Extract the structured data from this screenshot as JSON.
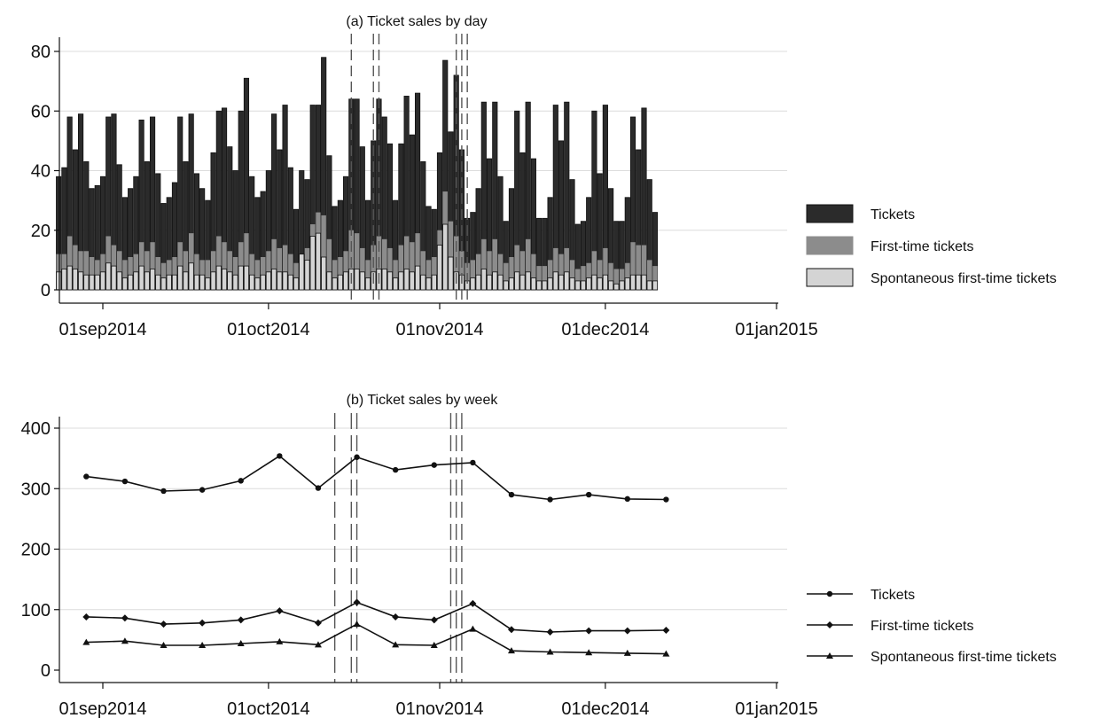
{
  "chart_data": [
    {
      "type": "bar",
      "title": "(a) Ticket sales by day",
      "xlabel": "",
      "ylabel": "",
      "ylim": [
        0,
        85
      ],
      "yticks": [
        0,
        20,
        40,
        60,
        80
      ],
      "x_range": [
        "2014-08-24",
        "2015-01-01"
      ],
      "xticks": [
        "01sep2014",
        "01oct2014",
        "01nov2014",
        "01dec2014",
        "01jan2015"
      ],
      "grid": true,
      "legend_position": "right",
      "x_start": "2014-08-24",
      "vlines": [
        "2014-10-16",
        "2014-10-20",
        "2014-10-21",
        "2014-11-04",
        "2014-11-05",
        "2014-11-06"
      ],
      "series": [
        {
          "name": "Tickets",
          "color": "#2b2b2b",
          "values": [
            38,
            41,
            58,
            47,
            59,
            43,
            34,
            35,
            38,
            58,
            59,
            42,
            31,
            34,
            38,
            57,
            43,
            58,
            39,
            29,
            31,
            36,
            58,
            43,
            59,
            39,
            34,
            30,
            46,
            60,
            61,
            48,
            40,
            60,
            71,
            38,
            31,
            33,
            40,
            59,
            47,
            62,
            41,
            27,
            40,
            37,
            62,
            62,
            78,
            45,
            28,
            30,
            38,
            64,
            64,
            48,
            30,
            50,
            64,
            58,
            49,
            30,
            49,
            65,
            52,
            66,
            43,
            28,
            27,
            46,
            77,
            53,
            72,
            47,
            24,
            26,
            34,
            63,
            44,
            63,
            38,
            23,
            34,
            60,
            46,
            63,
            44,
            24,
            24,
            31,
            62,
            50,
            63,
            37,
            22,
            23,
            31,
            60,
            39,
            62,
            34,
            23,
            23,
            31,
            58,
            47,
            61,
            37,
            26
          ]
        },
        {
          "name": "First-time tickets",
          "color": "#8c8c8c",
          "values": [
            12,
            12,
            18,
            15,
            13,
            13,
            11,
            10,
            12,
            18,
            15,
            13,
            10,
            11,
            12,
            16,
            13,
            16,
            11,
            9,
            10,
            11,
            16,
            13,
            19,
            12,
            10,
            10,
            13,
            18,
            16,
            13,
            11,
            16,
            19,
            12,
            10,
            11,
            13,
            17,
            14,
            15,
            12,
            9,
            12,
            14,
            22,
            26,
            25,
            17,
            10,
            11,
            13,
            20,
            19,
            14,
            10,
            15,
            18,
            17,
            14,
            10,
            15,
            18,
            16,
            19,
            13,
            10,
            11,
            20,
            33,
            23,
            18,
            13,
            9,
            10,
            12,
            17,
            13,
            17,
            12,
            9,
            11,
            15,
            13,
            17,
            12,
            8,
            8,
            10,
            14,
            12,
            14,
            10,
            7,
            8,
            9,
            13,
            10,
            14,
            9,
            7,
            7,
            9,
            16,
            15,
            15,
            10,
            8
          ]
        },
        {
          "name": "Spontaneous first-time tickets",
          "color": "#d4d4d4",
          "values": [
            6,
            7,
            8,
            7,
            6,
            5,
            5,
            5,
            6,
            9,
            8,
            6,
            4,
            5,
            6,
            8,
            6,
            7,
            5,
            4,
            5,
            5,
            8,
            6,
            9,
            5,
            5,
            4,
            6,
            8,
            7,
            6,
            5,
            8,
            8,
            5,
            4,
            5,
            6,
            7,
            6,
            6,
            5,
            4,
            12,
            10,
            18,
            19,
            11,
            6,
            4,
            5,
            6,
            7,
            7,
            6,
            4,
            6,
            7,
            7,
            6,
            4,
            6,
            7,
            6,
            8,
            5,
            4,
            5,
            15,
            22,
            11,
            6,
            5,
            3,
            4,
            5,
            7,
            5,
            6,
            5,
            3,
            4,
            6,
            5,
            6,
            4,
            3,
            3,
            4,
            6,
            5,
            6,
            4,
            3,
            3,
            4,
            5,
            4,
            5,
            3,
            2,
            3,
            4,
            5,
            5,
            5,
            3,
            3
          ]
        }
      ]
    },
    {
      "type": "line",
      "title": "(b) Ticket sales by week",
      "xlabel": "",
      "ylabel": "",
      "ylim": [
        -10,
        420
      ],
      "yticks": [
        0,
        100,
        200,
        300,
        400
      ],
      "x_range": [
        "2014-08-24",
        "2015-01-01"
      ],
      "xticks": [
        "01sep2014",
        "01oct2014",
        "01nov2014",
        "01dec2014",
        "01jan2015"
      ],
      "grid": true,
      "legend_position": "right",
      "x": [
        "2014-08-29",
        "2014-09-05",
        "2014-09-12",
        "2014-09-19",
        "2014-09-26",
        "2014-10-03",
        "2014-10-10",
        "2014-10-17",
        "2014-10-24",
        "2014-10-31",
        "2014-11-07",
        "2014-11-14",
        "2014-11-21",
        "2014-11-28",
        "2014-12-05",
        "2014-12-12"
      ],
      "vlines": [
        "2014-10-13",
        "2014-10-16",
        "2014-10-17",
        "2014-11-03",
        "2014-11-04",
        "2014-11-05"
      ],
      "series": [
        {
          "name": "Tickets",
          "marker": "circle",
          "values": [
            320,
            312,
            296,
            298,
            313,
            354,
            301,
            352,
            331,
            339,
            343,
            290,
            282,
            290,
            283,
            282
          ]
        },
        {
          "name": "First-time tickets",
          "marker": "diamond",
          "values": [
            88,
            86,
            76,
            78,
            83,
            98,
            78,
            112,
            88,
            83,
            110,
            67,
            63,
            65,
            65,
            66
          ]
        },
        {
          "name": "Spontaneous first-time tickets",
          "marker": "triangle",
          "values": [
            46,
            48,
            41,
            41,
            44,
            47,
            42,
            76,
            42,
            41,
            68,
            32,
            30,
            29,
            28,
            27
          ]
        }
      ]
    }
  ]
}
